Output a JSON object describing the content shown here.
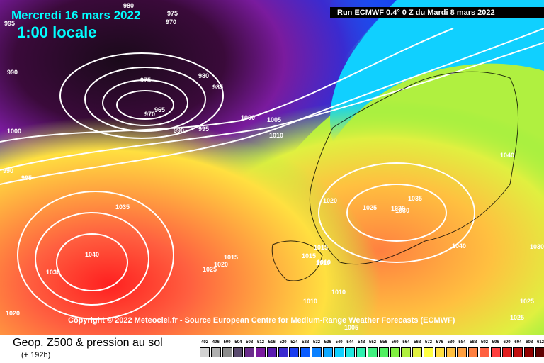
{
  "header": {
    "date": "Mercredi 16 mars 2022",
    "time": "1:00 locale",
    "run": "Run ECMWF 0.4° 0 Z du Mardi 8 mars 2022"
  },
  "copyright": "Copyright © 2022 Meteociel.fr - Source European Centre for Medium-Range Weather Forecasts (ECMWF)",
  "legend": {
    "title": "Geop. Z500 & pression au sol",
    "subtitle": "(+ 192h)",
    "ticks": [
      "492",
      "496",
      "500",
      "504",
      "508",
      "512",
      "516",
      "520",
      "524",
      "528",
      "532",
      "536",
      "540",
      "544",
      "548",
      "552",
      "556",
      "560",
      "564",
      "568",
      "572",
      "576",
      "580",
      "584",
      "588",
      "592",
      "596",
      "600",
      "604",
      "608",
      "612"
    ],
    "colors": [
      "#d2d2d2",
      "#b0b0b0",
      "#8c8c8c",
      "#5a4a6e",
      "#6b2d8c",
      "#7a1b9e",
      "#5a1bb0",
      "#3a2bd0",
      "#1a3cf0",
      "#0a5cff",
      "#0a80ff",
      "#10a8ff",
      "#10d0ff",
      "#20e8e0",
      "#30f0b0",
      "#40f080",
      "#50f060",
      "#80f040",
      "#b0f040",
      "#e0f040",
      "#ffff40",
      "#ffe040",
      "#ffc040",
      "#ffa040",
      "#ff8040",
      "#ff6040",
      "#ff4040",
      "#e02020",
      "#c01010",
      "#900000",
      "#600000"
    ]
  },
  "map": {
    "isobar_labels": [
      "995",
      "975",
      "970",
      "980",
      "990",
      "975",
      "970",
      "965",
      "980",
      "985",
      "1000",
      "1005",
      "1010",
      "995",
      "990",
      "1000",
      "990",
      "995",
      "1035",
      "1040",
      "1030",
      "1020",
      "1015",
      "1025",
      "1020",
      "1020",
      "1025",
      "1030",
      "1035",
      "1030",
      "1015",
      "1015",
      "1010",
      "1010",
      "1010",
      "1010",
      "1005",
      "1040",
      "1040",
      "1030",
      "1025",
      "1025"
    ]
  }
}
